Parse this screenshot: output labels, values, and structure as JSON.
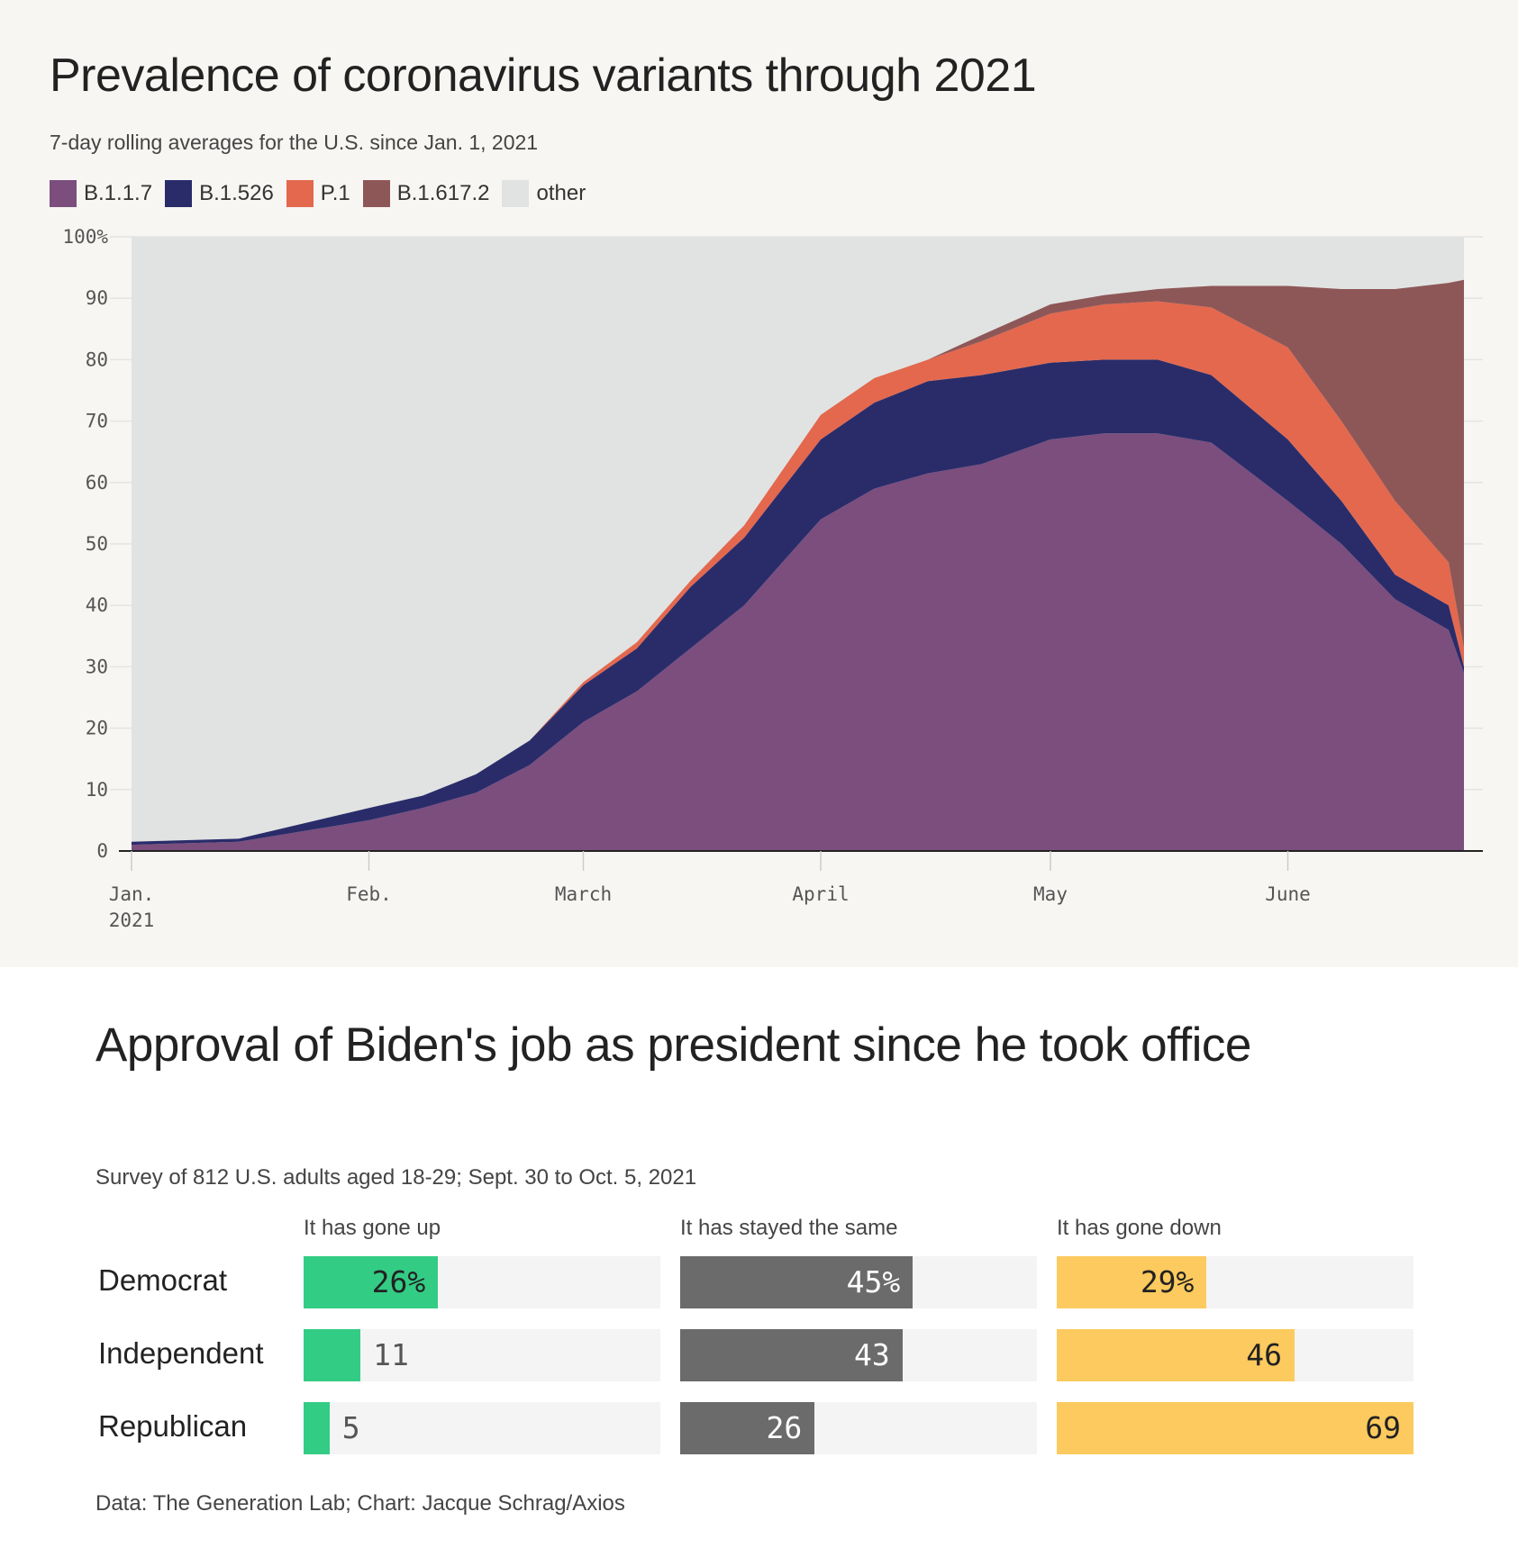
{
  "chart_data": [
    {
      "type": "area",
      "stacked": true,
      "title": "Prevalence of coronavirus variants through 2021",
      "subtitle": "7-day rolling averages for the U.S. since Jan. 1, 2021",
      "ylim": [
        0,
        100
      ],
      "yticks": [
        "0",
        "10",
        "20",
        "30",
        "40",
        "50",
        "60",
        "70",
        "80",
        "90",
        "100%"
      ],
      "xticks": [
        {
          "date": "2021-01-01",
          "label": "Jan.",
          "sub": "2021"
        },
        {
          "date": "2021-02-01",
          "label": "Feb."
        },
        {
          "date": "2021-03-01",
          "label": "March"
        },
        {
          "date": "2021-04-01",
          "label": "April"
        },
        {
          "date": "2021-05-01",
          "label": "May"
        },
        {
          "date": "2021-06-01",
          "label": "June"
        }
      ],
      "grid": true,
      "legend_placement": "top-left",
      "x": [
        "2021-01-01",
        "2021-01-15",
        "2021-02-01",
        "2021-02-08",
        "2021-02-15",
        "2021-02-22",
        "2021-03-01",
        "2021-03-08",
        "2021-03-15",
        "2021-03-22",
        "2021-04-01",
        "2021-04-08",
        "2021-04-15",
        "2021-04-22",
        "2021-05-01",
        "2021-05-08",
        "2021-05-15",
        "2021-05-22",
        "2021-06-01",
        "2021-06-08",
        "2021-06-15",
        "2021-06-22",
        "2021-06-24"
      ],
      "series": [
        {
          "name": "B.1.1.7",
          "color": "#7b4e7e",
          "values": [
            1,
            1.5,
            5,
            7,
            9.5,
            14,
            21,
            26,
            33,
            40,
            54,
            59,
            61.5,
            63,
            67,
            68,
            68,
            66.5,
            57,
            50,
            41,
            36,
            29
          ]
        },
        {
          "name": "B.1.526",
          "color": "#2a2c6a",
          "values": [
            0.5,
            0.5,
            2,
            2,
            3,
            4,
            6,
            7,
            10,
            11,
            13,
            14,
            15,
            14.5,
            12.5,
            12,
            12,
            11,
            10,
            7,
            4,
            4,
            1
          ]
        },
        {
          "name": "P.1",
          "color": "#e3684e",
          "values": [
            0,
            0,
            0,
            0,
            0,
            0,
            0.5,
            1,
            1,
            2,
            4,
            4,
            3.5,
            5.5,
            8,
            9,
            9.5,
            11,
            15,
            13,
            12,
            7,
            3
          ]
        },
        {
          "name": "B.1.617.2",
          "color": "#8e5757",
          "values": [
            0,
            0,
            0,
            0,
            0,
            0,
            0,
            0,
            0,
            0,
            0,
            0,
            0,
            1,
            1.5,
            1.5,
            2,
            3.5,
            10,
            21.5,
            34.5,
            45.5,
            60
          ]
        },
        {
          "name": "other",
          "color": "#e1e3e2",
          "remainder": true
        }
      ]
    },
    {
      "type": "bar",
      "title": "Approval of Biden's job as president since he took office",
      "subtitle": "Survey of 812 U.S. adults aged 18-29; Sept. 30 to Oct. 5, 2021",
      "categories": [
        "Democrat",
        "Independent",
        "Republican"
      ],
      "xlim": [
        0,
        69
      ],
      "series": [
        {
          "name": "It has gone up",
          "color": "#33cc85",
          "values": [
            26,
            11,
            5
          ],
          "labels": [
            "26%",
            "11",
            "5"
          ]
        },
        {
          "name": "It has stayed the same",
          "color": "#6b6b6b",
          "values": [
            45,
            43,
            26
          ],
          "labels": [
            "45%",
            "43",
            "26"
          ]
        },
        {
          "name": "It has gone down",
          "color": "#fcca5e",
          "values": [
            29,
            46,
            69
          ],
          "labels": [
            "29%",
            "46",
            "69"
          ]
        }
      ],
      "source": "Data: The Generation Lab; Chart: Jacque Schrag/Axios"
    }
  ]
}
